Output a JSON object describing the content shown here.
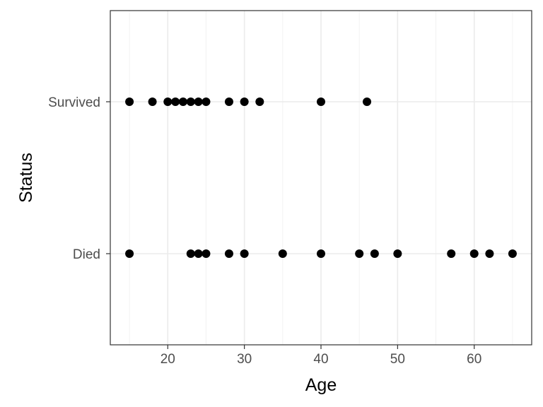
{
  "chart_data": {
    "type": "scatter",
    "xlabel": "Age",
    "ylabel": "Status",
    "categories": [
      "Died",
      "Survived"
    ],
    "xlim": [
      12.5,
      67.5
    ],
    "x_ticks": [
      20,
      30,
      40,
      50,
      60
    ],
    "grid": true,
    "series": [
      {
        "category": "Survived",
        "x": [
          15,
          18,
          20,
          21,
          22,
          23,
          24,
          25,
          28,
          30,
          32,
          40,
          46
        ]
      },
      {
        "category": "Died",
        "x": [
          15,
          23,
          24,
          25,
          28,
          30,
          35,
          40,
          45,
          47,
          50,
          57,
          60,
          62,
          65
        ]
      }
    ]
  }
}
